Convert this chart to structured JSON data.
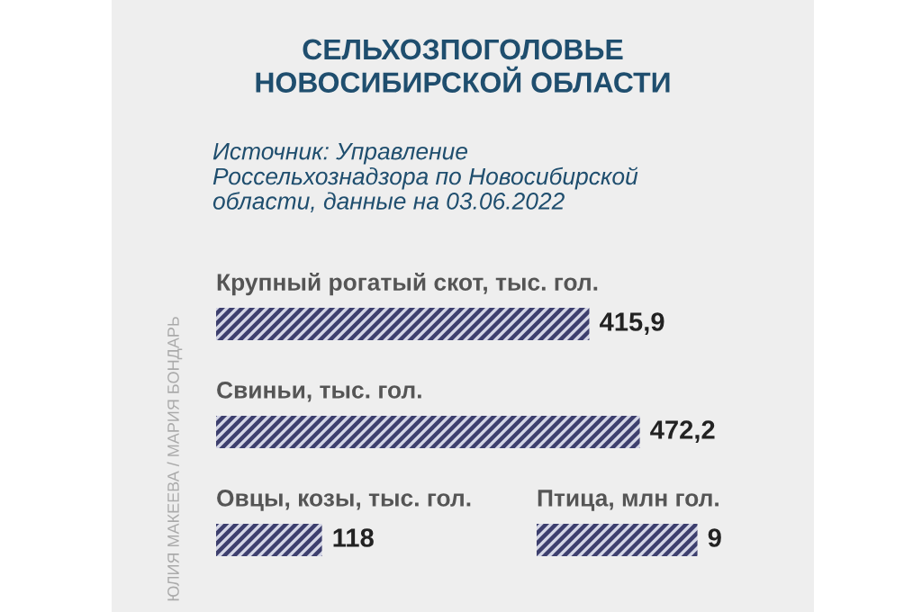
{
  "chart_data": [
    {
      "type": "bar",
      "orientation": "horizontal",
      "title": "СЕЛЬХОЗПОГОЛОВЬЕ\nНОВОСИБИРСКОЙ ОБЛАСТИ",
      "subtitle": "Источник: Управление\nРоссельхознадзора по Новосибирской\nобласти, данные на 03.06.2022",
      "annotations": [
        "ЮЛИЯ МАКЕЕВА / МАРИЯ БОНДАРЬ"
      ],
      "categories": [
        "Крупный рогатый скот, тыс. гол.",
        "Свиньи, тыс. гол.",
        "Овцы, козы, тыс. гол."
      ],
      "values": [
        415.9,
        472.2,
        118
      ],
      "value_labels": [
        "415,9",
        "472,2",
        "118"
      ],
      "color": "#3d3f6e",
      "tick_labels": false
    },
    {
      "type": "bar",
      "orientation": "horizontal",
      "categories": [
        "Птица, млн гол."
      ],
      "values": [
        9
      ],
      "data_labels": true,
      "color": "#3d3f6e",
      "tick_labels": false
    }
  ]
}
